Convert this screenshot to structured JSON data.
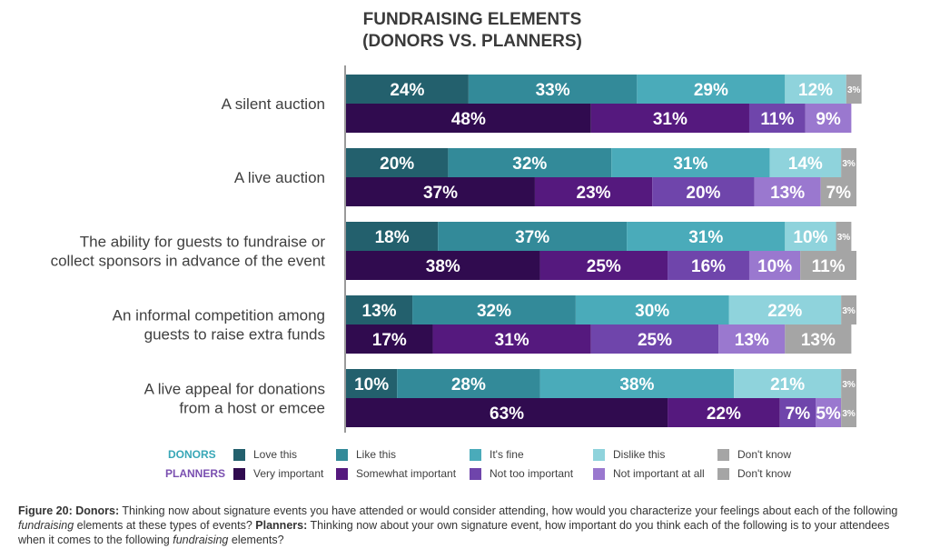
{
  "title_line1": "FUNDRAISING ELEMENTS",
  "title_line2": "(DONORS VS. PLANNERS)",
  "legend": {
    "donors_label": "DONORS",
    "planners_label": "PLANNERS",
    "donors_color": "#38a7b7",
    "planners_color": "#7a4fb0",
    "donors_items": [
      {
        "label": "Love this",
        "color": "#23606d"
      },
      {
        "label": "Like this",
        "color": "#338a99"
      },
      {
        "label": "It's fine",
        "color": "#4aabba"
      },
      {
        "label": "Dislike this",
        "color": "#8fd3dc"
      },
      {
        "label": "Don't know",
        "color": "#a5a5a5"
      }
    ],
    "planners_items": [
      {
        "label": "Very important",
        "color": "#300b4f"
      },
      {
        "label": "Somewhat important",
        "color": "#55197e"
      },
      {
        "label": "Not too important",
        "color": "#6f45ab"
      },
      {
        "label": "Not important at all",
        "color": "#9a78cf"
      },
      {
        "label": "Don't know",
        "color": "#a5a5a5"
      }
    ]
  },
  "chart_data": {
    "type": "bar",
    "orientation": "horizontal-stacked",
    "title": "FUNDRAISING ELEMENTS (DONORS VS. PLANNERS)",
    "categories": [
      [
        "A silent auction"
      ],
      [
        "A live auction"
      ],
      [
        "The ability for guests to fundraise or",
        "collect sponsors in advance of the event"
      ],
      [
        "An informal competition among",
        "guests to raise extra funds"
      ],
      [
        "A live appeal for donations",
        "from a host or emcee"
      ]
    ],
    "groups": [
      {
        "name": "DONORS",
        "series": [
          {
            "name": "Love this",
            "values": [
              24,
              20,
              18,
              13,
              10
            ]
          },
          {
            "name": "Like this",
            "values": [
              33,
              32,
              37,
              32,
              28
            ]
          },
          {
            "name": "It's fine",
            "values": [
              29,
              31,
              31,
              30,
              38
            ]
          },
          {
            "name": "Dislike this",
            "values": [
              12,
              14,
              10,
              22,
              21
            ]
          },
          {
            "name": "Don't know",
            "values": [
              3,
              3,
              3,
              3,
              3
            ]
          }
        ]
      },
      {
        "name": "PLANNERS",
        "series": [
          {
            "name": "Very important",
            "values": [
              48,
              37,
              38,
              17,
              63
            ]
          },
          {
            "name": "Somewhat important",
            "values": [
              31,
              23,
              25,
              31,
              22
            ]
          },
          {
            "name": "Not too important",
            "values": [
              11,
              20,
              16,
              25,
              7
            ]
          },
          {
            "name": "Not important at all",
            "values": [
              9,
              13,
              10,
              13,
              5
            ]
          },
          {
            "name": "Don't know",
            "values": [
              0,
              7,
              11,
              13,
              3
            ]
          }
        ]
      }
    ],
    "value_suffix": "%"
  },
  "caption": {
    "fig_label": "Figure 20: Donors:",
    "text1": " Thinking now about signature events you have attended or would consider attending, how would you characterize your feelings about each of the following ",
    "em1": "fundraising",
    "text2": " elements at these types of events? ",
    "planners_label": "Planners:",
    "text3": " Thinking now about your own signature event, how important do you think each of the following is to your attendees when it comes to the following ",
    "em2": "fundraising",
    "text4": " elements?"
  }
}
